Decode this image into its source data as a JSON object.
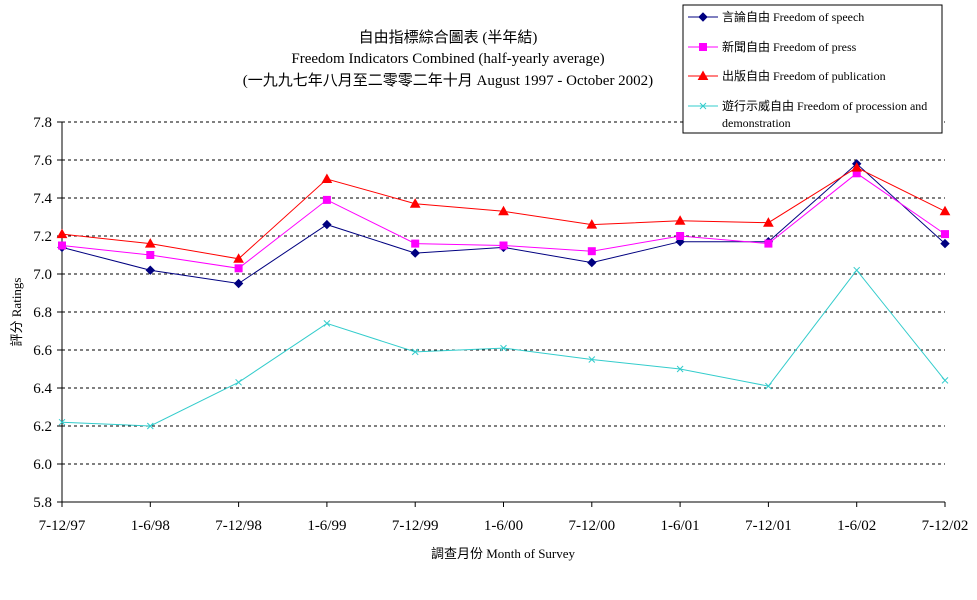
{
  "chart_data": {
    "type": "line",
    "title": "自由指標綜合圖表 (半年結)",
    "subtitle": "Freedom Indicators Combined (half-yearly average)",
    "subtitle2": "(一九九七年八月至二零零二年十月 August 1997 - October 2002)",
    "xlabel": "調查月份 Month of Survey",
    "ylabel": "評分 Ratings",
    "categories": [
      "7-12/97",
      "1-6/98",
      "7-12/98",
      "1-6/99",
      "7-12/99",
      "1-6/00",
      "7-12/00",
      "1-6/01",
      "7-12/01",
      "1-6/02",
      "7-12/02"
    ],
    "ylim": [
      5.8,
      7.8
    ],
    "yticks": [
      "5.8",
      "6.0",
      "6.2",
      "6.4",
      "6.6",
      "6.8",
      "7.0",
      "7.2",
      "7.4",
      "7.6",
      "7.8"
    ],
    "grid": "horizontal dashed",
    "legend_position": "top-right",
    "series": [
      {
        "name": "言論自由 Freedom of speech",
        "color": "#000080",
        "marker": "diamond",
        "values": [
          7.14,
          7.02,
          6.95,
          7.26,
          7.11,
          7.14,
          7.06,
          7.17,
          7.17,
          7.58,
          7.16
        ]
      },
      {
        "name": "新聞自由 Freedom of press",
        "color": "#ff00ff",
        "marker": "square",
        "values": [
          7.15,
          7.1,
          7.03,
          7.39,
          7.16,
          7.15,
          7.12,
          7.2,
          7.16,
          7.53,
          7.21
        ]
      },
      {
        "name": "出版自由 Freedom of publication",
        "color": "#ff0000",
        "marker": "triangle",
        "values": [
          7.21,
          7.16,
          7.08,
          7.5,
          7.37,
          7.33,
          7.26,
          7.28,
          7.27,
          7.56,
          7.33
        ]
      },
      {
        "name": "遊行示威自由 Freedom of procession and demonstration",
        "legend_lines": [
          "遊行示威自由 Freedom of procession and",
          "demonstration"
        ],
        "color": "#33cccc",
        "marker": "x",
        "values": [
          6.22,
          6.2,
          6.43,
          6.74,
          6.59,
          6.61,
          6.55,
          6.5,
          6.41,
          7.02,
          6.44
        ]
      }
    ]
  }
}
